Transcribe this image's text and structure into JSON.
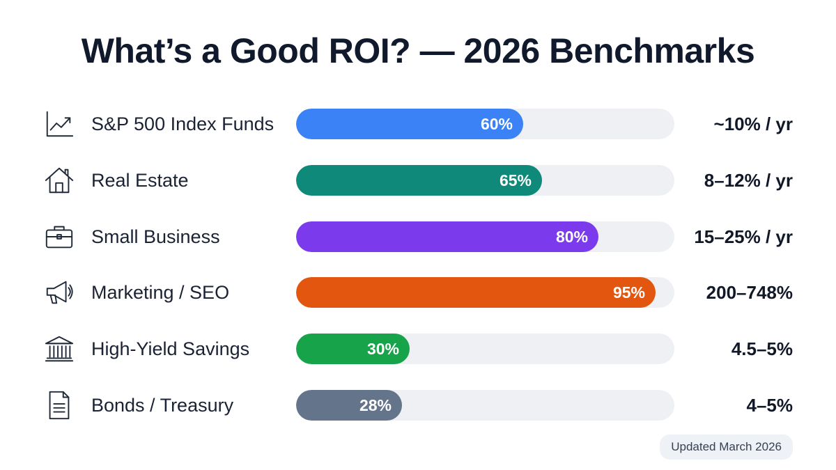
{
  "chart_data": {
    "type": "bar",
    "title": "What’s a Good ROI? — 2026 Benchmarks",
    "categories": [
      "S&P 500 Index Funds",
      "Real Estate",
      "Small Business",
      "Marketing / SEO",
      "High-Yield Savings",
      "Bonds / Treasury"
    ],
    "values": [
      60,
      65,
      80,
      95,
      30,
      28
    ],
    "value_labels": [
      "60%",
      "65%",
      "80%",
      "95%",
      "30%",
      "28%"
    ],
    "roi_labels": [
      "~10% / yr",
      "8–12% / yr",
      "15–25% / yr",
      "200–748%",
      "4.5–5%",
      "4–5%"
    ],
    "colors": [
      "#3b82f6",
      "#0f8a7a",
      "#7c3aed",
      "#e2560f",
      "#16a34a",
      "#64748b"
    ],
    "icons": [
      "trend-chart-icon",
      "house-icon",
      "briefcase-icon",
      "megaphone-icon",
      "bank-icon",
      "document-icon"
    ],
    "xlim": [
      0,
      100
    ],
    "orientation": "horizontal",
    "track_color": "#eef0f4"
  },
  "footer": {
    "updated": "Updated March 2026"
  }
}
